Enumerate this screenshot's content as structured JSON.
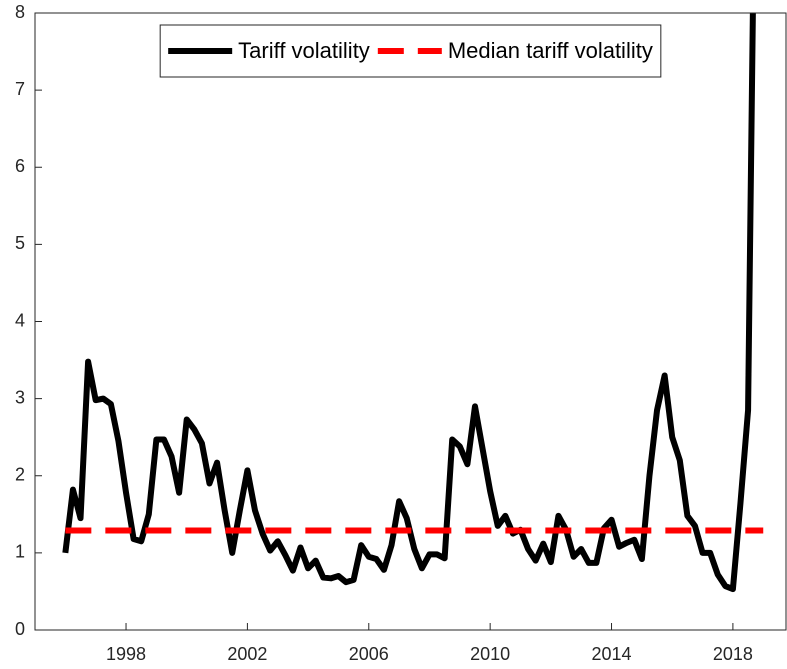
{
  "chart_data": {
    "type": "line",
    "series": [
      {
        "name": "Tariff volatility",
        "color": "#000000",
        "dash": false,
        "x": [
          1996,
          1996.25,
          1996.5,
          1996.75,
          1997,
          1997.25,
          1997.5,
          1997.75,
          1998,
          1998.25,
          1998.5,
          1998.75,
          1999,
          1999.25,
          1999.5,
          1999.75,
          2000,
          2000.25,
          2000.5,
          2000.75,
          2001,
          2001.25,
          2001.5,
          2001.75,
          2002,
          2002.25,
          2002.5,
          2002.75,
          2003,
          2003.25,
          2003.5,
          2003.75,
          2004,
          2004.25,
          2004.5,
          2004.75,
          2005,
          2005.25,
          2005.5,
          2005.75,
          2006,
          2006.25,
          2006.5,
          2006.75,
          2007,
          2007.25,
          2007.5,
          2007.75,
          2008,
          2008.25,
          2008.5,
          2008.75,
          2009,
          2009.25,
          2009.5,
          2009.75,
          2010,
          2010.25,
          2010.5,
          2010.75,
          2011,
          2011.25,
          2011.5,
          2011.75,
          2012,
          2012.25,
          2012.5,
          2012.75,
          2013,
          2013.25,
          2013.5,
          2013.75,
          2014,
          2014.25,
          2014.5,
          2014.75,
          2015,
          2015.25,
          2015.5,
          2015.75,
          2016,
          2016.25,
          2016.5,
          2016.75,
          2017,
          2017.25,
          2017.5,
          2017.75,
          2018,
          2018.25,
          2018.5,
          2018.75
        ],
        "values": [
          1.0,
          1.82,
          1.45,
          3.48,
          2.98,
          3.0,
          2.93,
          2.45,
          1.78,
          1.18,
          1.15,
          1.5,
          2.47,
          2.47,
          2.25,
          1.78,
          2.73,
          2.6,
          2.42,
          1.9,
          2.17,
          1.55,
          1.0,
          1.55,
          2.07,
          1.55,
          1.25,
          1.03,
          1.15,
          0.97,
          0.77,
          1.07,
          0.8,
          0.9,
          0.68,
          0.67,
          0.7,
          0.62,
          0.65,
          1.1,
          0.95,
          0.92,
          0.78,
          1.1,
          1.67,
          1.45,
          1.05,
          0.8,
          0.98,
          0.98,
          0.93,
          2.47,
          2.38,
          2.15,
          2.9,
          2.35,
          1.8,
          1.35,
          1.48,
          1.25,
          1.3,
          1.05,
          0.9,
          1.12,
          0.88,
          1.48,
          1.3,
          0.95,
          1.05,
          0.87,
          0.87,
          1.32,
          1.43,
          1.08,
          1.13,
          1.17,
          0.92,
          2.0,
          2.85,
          3.3,
          2.5,
          2.2,
          1.48,
          1.35,
          1.0,
          1.0,
          0.72,
          0.57,
          0.53,
          1.65,
          2.85,
          11
        ]
      },
      {
        "name": "Median tariff volatility",
        "color": "#ff0000",
        "dash": true,
        "x": [
          1996,
          2019
        ],
        "values": [
          1.29,
          1.29
        ]
      }
    ],
    "xlim": [
      1995,
      2019.75
    ],
    "xticks": [
      1998,
      2002,
      2006,
      2010,
      2014,
      2018
    ],
    "ylim": [
      0,
      8
    ],
    "yticks": [
      0,
      1,
      2,
      3,
      4,
      5,
      6,
      7,
      8
    ],
    "legend": "top"
  }
}
